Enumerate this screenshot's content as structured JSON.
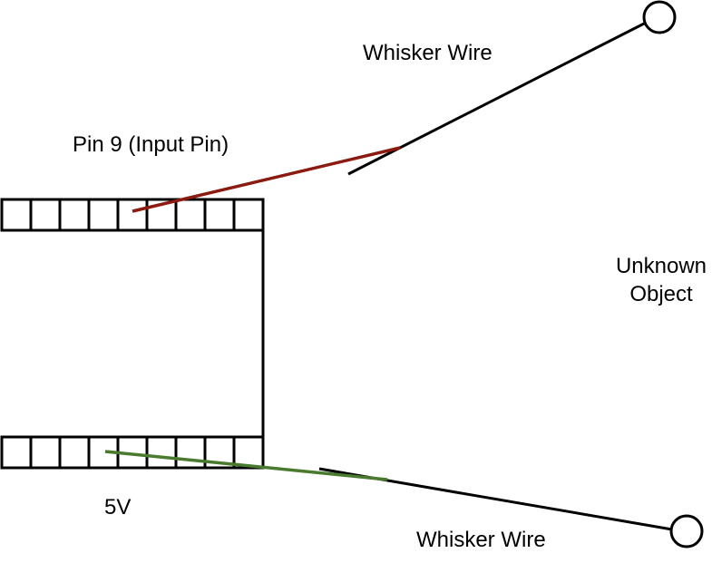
{
  "labels": {
    "whisker_top": "Whisker Wire",
    "pin_input": "Pin 9 (Input Pin)",
    "unknown_line1": "Unknown",
    "unknown_line2": "Object",
    "power": "5V",
    "whisker_bottom": "Whisker Wire"
  },
  "colors": {
    "outline": "#000000",
    "input_wire": "#8b1a10",
    "power_wire": "#4a7a2e"
  },
  "header_pin_count": 9
}
